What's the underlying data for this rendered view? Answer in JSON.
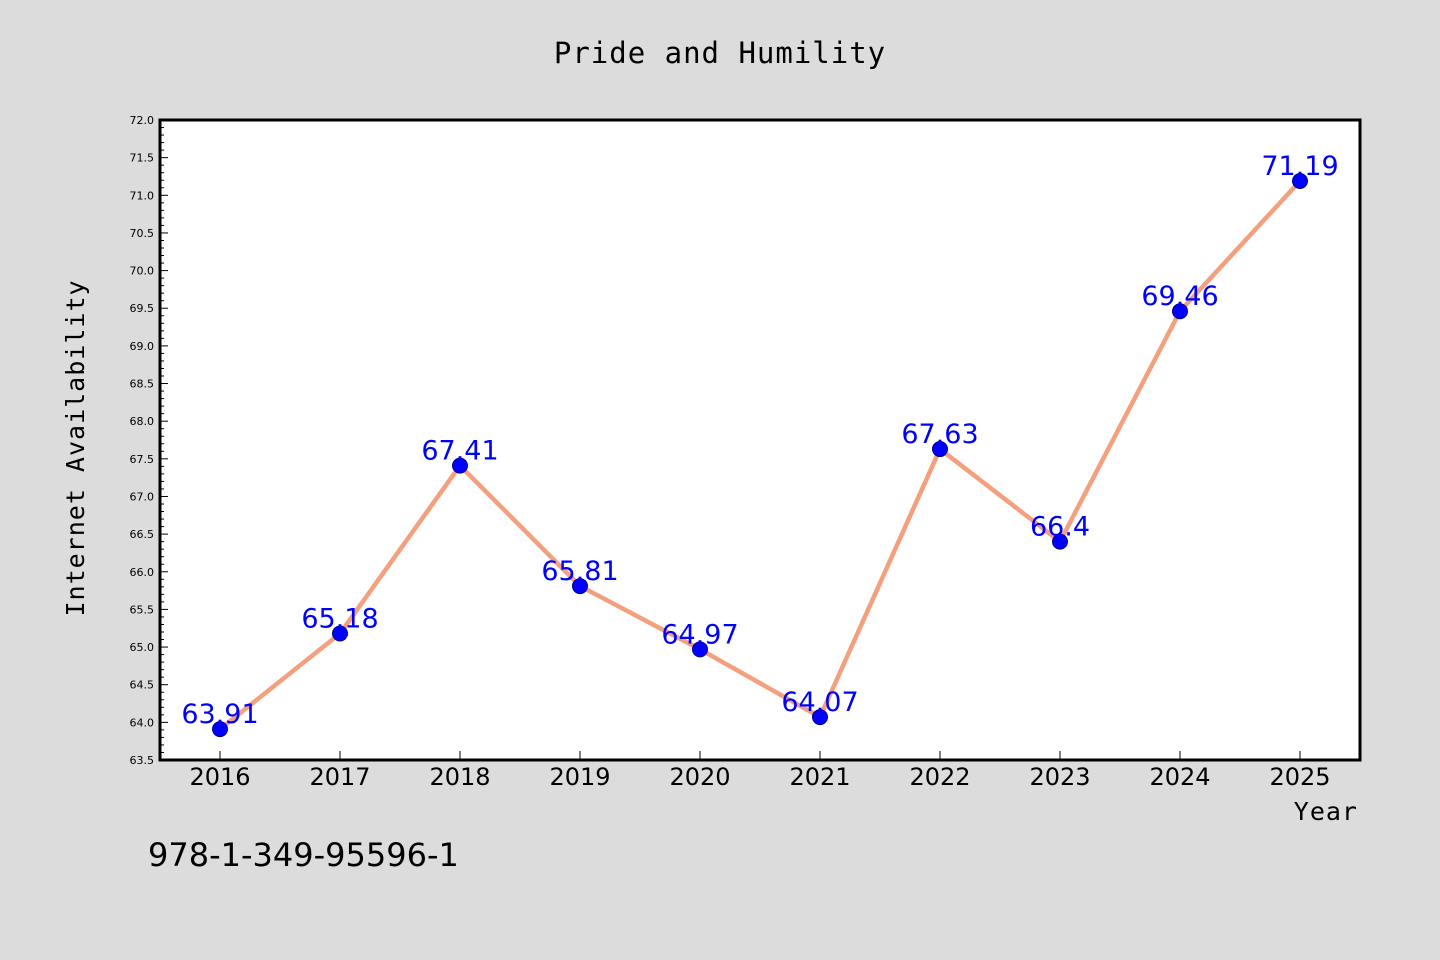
{
  "footer_text": "978-1-349-95596-1",
  "chart_data": {
    "type": "line",
    "title": "Pride and Humility",
    "xlabel": "Year",
    "ylabel": "Internet Availability",
    "categories": [
      "2016",
      "2017",
      "2018",
      "2019",
      "2020",
      "2021",
      "2022",
      "2023",
      "2024",
      "2025"
    ],
    "values": [
      63.91,
      65.18,
      67.41,
      65.81,
      64.97,
      64.07,
      67.63,
      66.4,
      69.46,
      71.19
    ],
    "data_labels": [
      "63.91",
      "65.18",
      "67.41",
      "65.81",
      "64.97",
      "64.07",
      "67.63",
      "66.4",
      "69.46",
      "71.19"
    ],
    "ylim": [
      63.5,
      72.0
    ],
    "yticks": [
      "63.5",
      "64.0",
      "64.5",
      "65.0",
      "65.5",
      "66.0",
      "66.5",
      "67.0",
      "67.5",
      "68.0",
      "68.5",
      "69.0",
      "69.5",
      "70.0",
      "70.5",
      "71.0",
      "71.5",
      "72.0"
    ],
    "grid": false,
    "line_color": "#f4a07e",
    "marker_color": "#0000ff",
    "label_color": "#0000ff",
    "background_color": "#dcdcdc",
    "plot_background_color": "#ffffff"
  }
}
